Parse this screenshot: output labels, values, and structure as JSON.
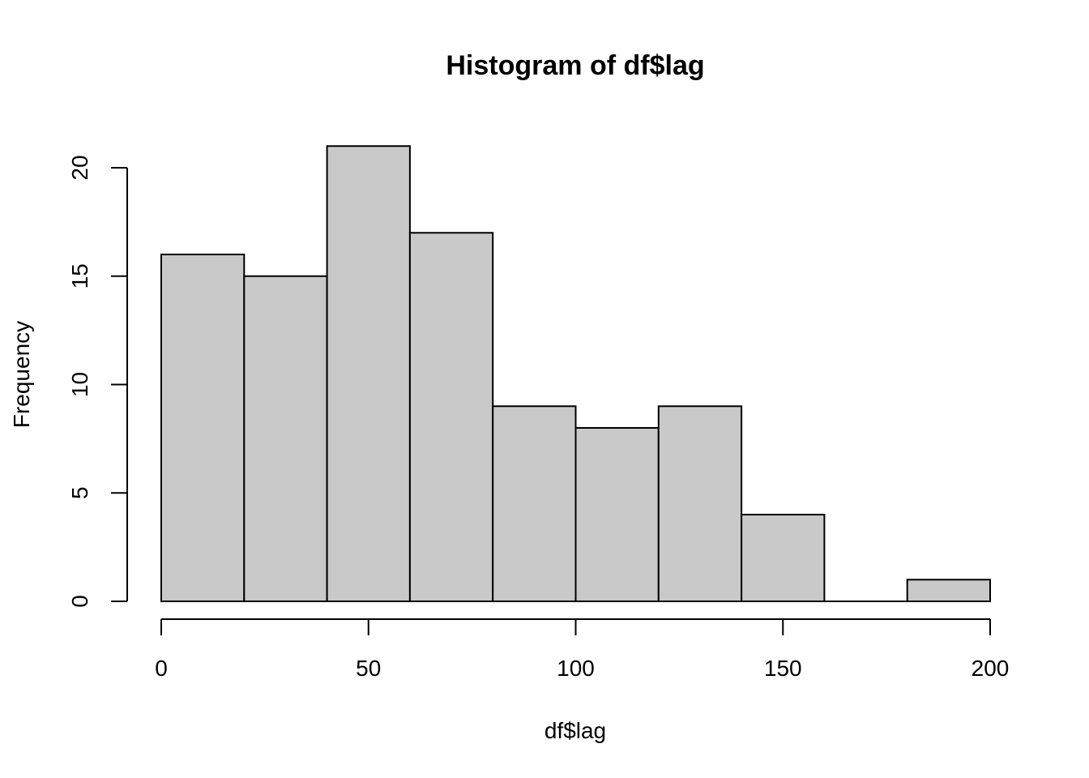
{
  "chart_data": {
    "type": "bar",
    "title": "Histogram of df$lag",
    "xlabel": "df$lag",
    "ylabel": "Frequency",
    "bins": [
      {
        "start": 0,
        "end": 20,
        "count": 16
      },
      {
        "start": 20,
        "end": 40,
        "count": 15
      },
      {
        "start": 40,
        "end": 60,
        "count": 21
      },
      {
        "start": 60,
        "end": 80,
        "count": 17
      },
      {
        "start": 80,
        "end": 100,
        "count": 9
      },
      {
        "start": 100,
        "end": 120,
        "count": 8
      },
      {
        "start": 120,
        "end": 140,
        "count": 9
      },
      {
        "start": 140,
        "end": 160,
        "count": 4
      },
      {
        "start": 160,
        "end": 180,
        "count": 0
      },
      {
        "start": 180,
        "end": 200,
        "count": 1
      }
    ],
    "xlim": [
      0,
      200
    ],
    "ylim": [
      0,
      20
    ],
    "x_ticks": [
      0,
      50,
      100,
      150,
      200
    ],
    "y_ticks": [
      0,
      5,
      10,
      15,
      20
    ],
    "bar_color": "#c9c9c9",
    "grid": false,
    "legend": "none"
  }
}
